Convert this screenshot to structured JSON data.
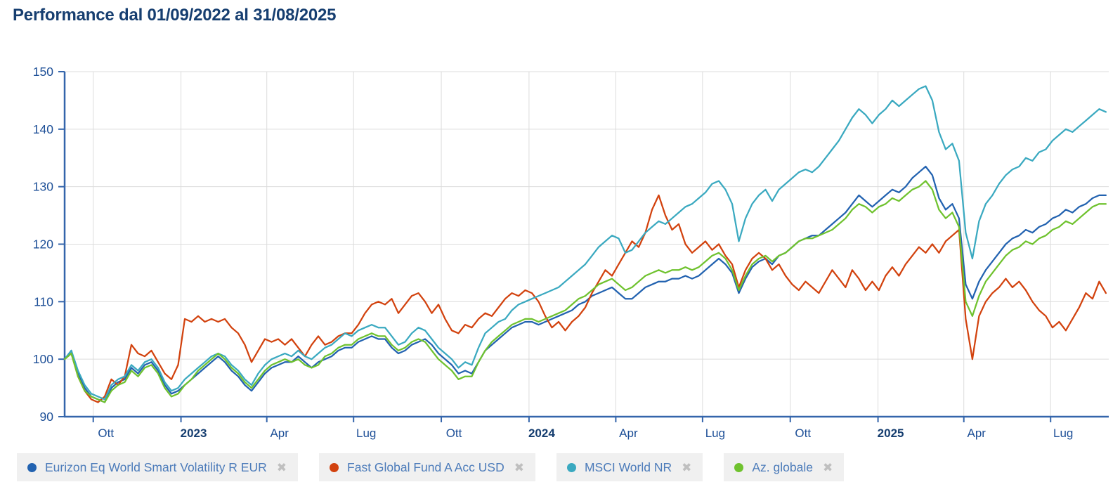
{
  "title": "Performance dal 01/09/2022 al 31/08/2025",
  "colors": {
    "title": "#163e70",
    "axis_line": "#3465ab",
    "y_tick_label": "#1d4f97",
    "x_tick_label": "#1d4f97",
    "x_year_label": "#163e70",
    "grid": "#dcdcdc",
    "legend_bg": "#f0f0f0",
    "legend_text": "#4d7cba",
    "close_icon": "#bfbfbf",
    "background": "#ffffff"
  },
  "legend": {
    "close_icon": "✖",
    "items": [
      {
        "label": "Eurizon Eq World Smart Volatility R EUR",
        "color": "#2262b0"
      },
      {
        "label": "Fast Global Fund A Acc USD",
        "color": "#d2420e"
      },
      {
        "label": "MSCI World NR",
        "color": "#3aa9c0"
      },
      {
        "label": "Az. globale",
        "color": "#6fc22e"
      }
    ]
  },
  "chart_data": {
    "type": "line",
    "title": "Performance dal 01/09/2022 al 31/08/2025",
    "x_axis": {
      "start_date": "2022-09-01",
      "end_date": "2025-08-31",
      "total_days": 1095,
      "ticks": [
        {
          "label": "Ott",
          "day": 30,
          "bold": false
        },
        {
          "label": "2023",
          "day": 122,
          "bold": true
        },
        {
          "label": "Apr",
          "day": 212,
          "bold": false
        },
        {
          "label": "Lug",
          "day": 303,
          "bold": false
        },
        {
          "label": "Ott",
          "day": 395,
          "bold": false
        },
        {
          "label": "2024",
          "day": 487,
          "bold": true
        },
        {
          "label": "Apr",
          "day": 578,
          "bold": false
        },
        {
          "label": "Lug",
          "day": 669,
          "bold": false
        },
        {
          "label": "Ott",
          "day": 761,
          "bold": false
        },
        {
          "label": "2025",
          "day": 853,
          "bold": true
        },
        {
          "label": "Apr",
          "day": 943,
          "bold": false
        },
        {
          "label": "Lug",
          "day": 1034,
          "bold": false
        }
      ]
    },
    "y_axis": {
      "min": 90,
      "max": 150,
      "tick_step": 10,
      "ticks": [
        90,
        100,
        110,
        120,
        130,
        140,
        150
      ]
    },
    "baseline_value": 100,
    "sample_interval_days": 7,
    "series": [
      {
        "name": "Eurizon Eq World Smart Volatility R EUR",
        "color": "#2262b0",
        "values": [
          100,
          101.5,
          97.5,
          95,
          93.5,
          93,
          92.5,
          95,
          96,
          96.5,
          98.5,
          97.5,
          99,
          99.5,
          98,
          95.5,
          94,
          94.5,
          95.5,
          96.5,
          97.5,
          98.5,
          99.5,
          100.5,
          99.5,
          98,
          97,
          95.5,
          94.5,
          96,
          97.5,
          98.5,
          99,
          99.5,
          99.5,
          100.5,
          99.5,
          98.5,
          99.5,
          100,
          100.5,
          101.5,
          102,
          102,
          103,
          103.5,
          104,
          103.5,
          103.5,
          102,
          101,
          101.5,
          102.5,
          103,
          103.5,
          102.5,
          101,
          100,
          99,
          97.5,
          98,
          97.5,
          99.5,
          101.5,
          102.5,
          103.5,
          104.5,
          105.5,
          106,
          106.5,
          106.5,
          106,
          106.5,
          107,
          107.5,
          108,
          108.5,
          109.5,
          110,
          111,
          111.5,
          112,
          112.5,
          111.5,
          110.5,
          110.5,
          111.5,
          112.5,
          113,
          113.5,
          113.5,
          114,
          114,
          114.5,
          114,
          114.5,
          115.5,
          116.5,
          117.5,
          116.5,
          115,
          111.5,
          114,
          116,
          117,
          117.5,
          116.5,
          118,
          118.5,
          119.5,
          120.5,
          121,
          121.5,
          121.5,
          122.5,
          123.5,
          124.5,
          125.5,
          127,
          128.5,
          127.5,
          126.5,
          127.5,
          128.5,
          129.5,
          129,
          130,
          131.5,
          132.5,
          133.5,
          132,
          128,
          126,
          127,
          124.5,
          113,
          110.5,
          113.5,
          115.5,
          117,
          118.5,
          120,
          121,
          121.5,
          122.5,
          122,
          123,
          123.5,
          124.5,
          125,
          126,
          125.5,
          126.5,
          127,
          128,
          128.5,
          128.5
        ]
      },
      {
        "name": "Fast Global Fund A Acc USD",
        "color": "#d2420e",
        "values": [
          100,
          101,
          97,
          94.5,
          93,
          92.5,
          93.5,
          96.5,
          95.5,
          97,
          102.5,
          101,
          100.5,
          101.5,
          99.5,
          97.5,
          96.5,
          99,
          107,
          106.5,
          107.5,
          106.5,
          107,
          106.5,
          107,
          105.5,
          104.5,
          102.5,
          99.5,
          101.5,
          103.5,
          103,
          103.5,
          102.5,
          103.5,
          102,
          100.5,
          102.5,
          104,
          102.5,
          103,
          104,
          104.5,
          104.5,
          106,
          108,
          109.5,
          110,
          109.5,
          110.5,
          108,
          109.5,
          111,
          111.5,
          110,
          108,
          109.5,
          107,
          105,
          104.5,
          106,
          105.5,
          107,
          108,
          107.5,
          109,
          110.5,
          111.5,
          111,
          112,
          111.5,
          110,
          107.5,
          105.5,
          106.5,
          105,
          106.5,
          107.5,
          109,
          111.5,
          113.5,
          115.5,
          114.5,
          116.5,
          118.5,
          120.5,
          119.5,
          122,
          126,
          128.5,
          125,
          122.5,
          123.5,
          120,
          118.5,
          119.5,
          120.5,
          119,
          120,
          118,
          116.5,
          112.5,
          115.5,
          117.5,
          118.5,
          117.5,
          115.5,
          116.5,
          114.5,
          113,
          112,
          113.5,
          112.5,
          111.5,
          113.5,
          115.5,
          114,
          112.5,
          115.5,
          114,
          112,
          113.5,
          112,
          114.5,
          116,
          114.5,
          116.5,
          118,
          119.5,
          118.5,
          120,
          118.5,
          120.5,
          121.5,
          122.5,
          107,
          100,
          107.5,
          110,
          111.5,
          112.5,
          114,
          112.5,
          113.5,
          112,
          110,
          108.5,
          107.5,
          105.5,
          106.5,
          105,
          107,
          109,
          111.5,
          110.5,
          113.5,
          111.5
        ]
      },
      {
        "name": "MSCI World NR",
        "color": "#3aa9c0",
        "values": [
          100,
          101.5,
          98,
          95.5,
          94,
          93.5,
          93,
          95.5,
          96.5,
          97,
          99,
          98,
          99.5,
          100,
          98.5,
          96,
          94.5,
          95,
          96.5,
          97.5,
          98.5,
          99.5,
          100.5,
          101,
          100.5,
          99,
          98,
          96.5,
          95.5,
          97.5,
          99,
          100,
          100.5,
          101,
          100.5,
          101.5,
          100.5,
          100,
          101,
          102,
          102.5,
          103.5,
          104.5,
          104,
          105,
          105.5,
          106,
          105.5,
          105.5,
          104,
          102.5,
          103,
          104.5,
          105.5,
          105,
          103.5,
          102,
          101,
          100,
          98.5,
          99.5,
          99,
          102,
          104.5,
          105.5,
          106.5,
          107,
          108.5,
          109.5,
          110,
          110.5,
          111,
          111.5,
          112,
          112.5,
          113.5,
          114.5,
          115.5,
          116.5,
          118,
          119.5,
          120.5,
          121.5,
          121,
          118.5,
          119,
          120.5,
          122,
          123,
          124,
          123.5,
          124.5,
          125.5,
          126.5,
          127,
          128,
          129,
          130.5,
          131,
          129.5,
          127,
          120.5,
          124.5,
          127,
          128.5,
          129.5,
          127.5,
          129.5,
          130.5,
          131.5,
          132.5,
          133,
          132.5,
          133.5,
          135,
          136.5,
          138,
          140,
          142,
          143.5,
          142.5,
          141,
          142.5,
          143.5,
          145,
          144,
          145,
          146,
          147,
          147.5,
          145,
          139.5,
          136.5,
          137.5,
          134.5,
          122,
          117.5,
          124,
          127,
          128.5,
          130.5,
          132,
          133,
          133.5,
          135,
          134.5,
          136,
          136.5,
          138,
          139,
          140,
          139.5,
          140.5,
          141.5,
          142.5,
          143.5,
          143
        ]
      },
      {
        "name": "Az. globale",
        "color": "#6fc22e",
        "values": [
          100,
          101,
          97,
          94.5,
          93.5,
          93,
          92.5,
          94.5,
          95.5,
          96,
          98,
          97,
          98.5,
          99,
          97.5,
          95,
          93.5,
          94,
          95.5,
          96.5,
          98,
          99,
          100,
          101,
          100,
          98.5,
          97.5,
          96,
          95,
          96.5,
          98,
          99,
          99.5,
          100,
          99.5,
          100,
          99,
          98.5,
          99,
          100.5,
          101,
          102,
          102.5,
          102.5,
          103.5,
          104,
          104.5,
          104,
          104,
          102.5,
          101.5,
          102,
          103,
          103.5,
          103,
          101.5,
          100,
          99,
          98,
          96.5,
          97,
          97,
          99.5,
          101.5,
          103,
          104,
          105,
          106,
          106.5,
          107,
          107,
          106.5,
          107,
          107.5,
          108,
          108.5,
          109.5,
          110.5,
          111,
          112,
          113,
          113.5,
          114,
          113,
          112,
          112.5,
          113.5,
          114.5,
          115,
          115.5,
          115,
          115.5,
          115.5,
          116,
          115.5,
          116,
          117,
          118,
          118.5,
          117.5,
          115.5,
          112,
          114.5,
          116.5,
          117.5,
          118,
          117,
          118,
          118.5,
          119.5,
          120.5,
          121,
          121,
          121.5,
          122,
          122.5,
          123.5,
          124.5,
          126,
          127,
          126.5,
          125.5,
          126.5,
          127,
          128,
          127.5,
          128.5,
          129.5,
          130,
          131,
          129.5,
          126,
          124.5,
          125.5,
          123,
          110,
          107.5,
          111,
          113.5,
          115,
          116.5,
          118,
          119,
          119.5,
          120.5,
          120,
          121,
          121.5,
          122.5,
          123,
          124,
          123.5,
          124.5,
          125.5,
          126.5,
          127,
          127
        ]
      }
    ]
  }
}
